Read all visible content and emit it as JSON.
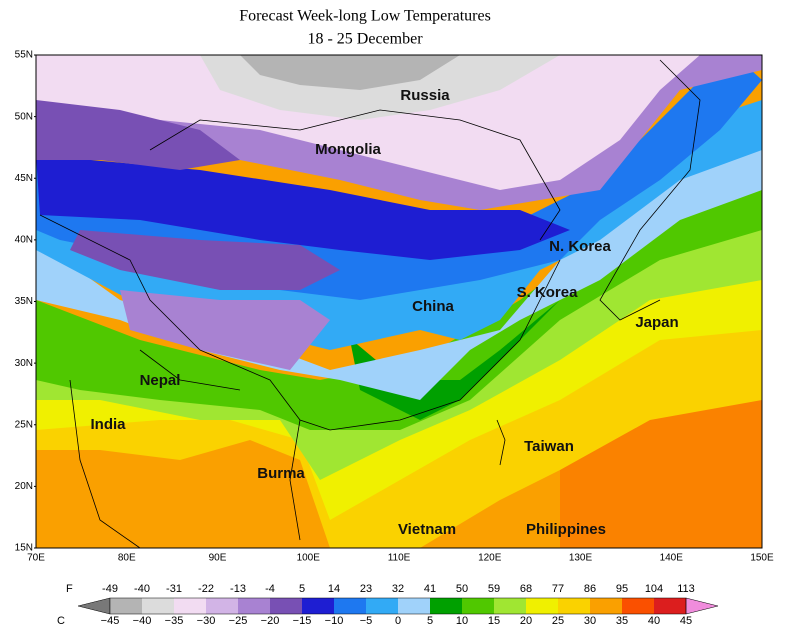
{
  "title": [
    "Forecast Week-long Low Temperatures",
    "18 - 25 December"
  ],
  "lat_labels": [
    "55N",
    "50N",
    "45N",
    "40N",
    "35N",
    "30N",
    "25N",
    "20N",
    "15N"
  ],
  "lon_labels": [
    "70E",
    "80E",
    "90E",
    "100E",
    "110E",
    "120E",
    "130E",
    "140E",
    "150E"
  ],
  "regions": [
    "Russia",
    "Mongolia",
    "N. Korea",
    "S. Korea",
    "China",
    "Japan",
    "Nepal",
    "India",
    "Taiwan",
    "Burma",
    "Vietnam",
    "Philippines"
  ],
  "colorbar": {
    "f_unit": "F",
    "c_unit": "C",
    "f_labels": [
      -49,
      -40,
      -31,
      -22,
      -13,
      -4,
      5,
      14,
      23,
      32,
      41,
      50,
      59,
      68,
      77,
      86,
      95,
      104,
      113
    ],
    "c_labels": [
      "−45",
      "−40",
      "−35",
      "−30",
      "−25",
      "−20",
      "−15",
      "−10",
      "−5",
      "0",
      "5",
      "10",
      "15",
      "20",
      "25",
      "30",
      "35",
      "40",
      "45"
    ],
    "low_color": "#787878",
    "high_color": "#f08cdc",
    "colors": [
      "#b4b4b4",
      "#dcdcdc",
      "#f2dcf2",
      "#d2b4e6",
      "#a882d2",
      "#7850b4",
      "#1e1ed2",
      "#1e78f0",
      "#32aaf5",
      "#a0d2fa",
      "#00a000",
      "#50c800",
      "#a0e632",
      "#f0f000",
      "#fad200",
      "#faa000",
      "#fa5000",
      "#dc1e1e",
      "#c800c8"
    ]
  }
}
